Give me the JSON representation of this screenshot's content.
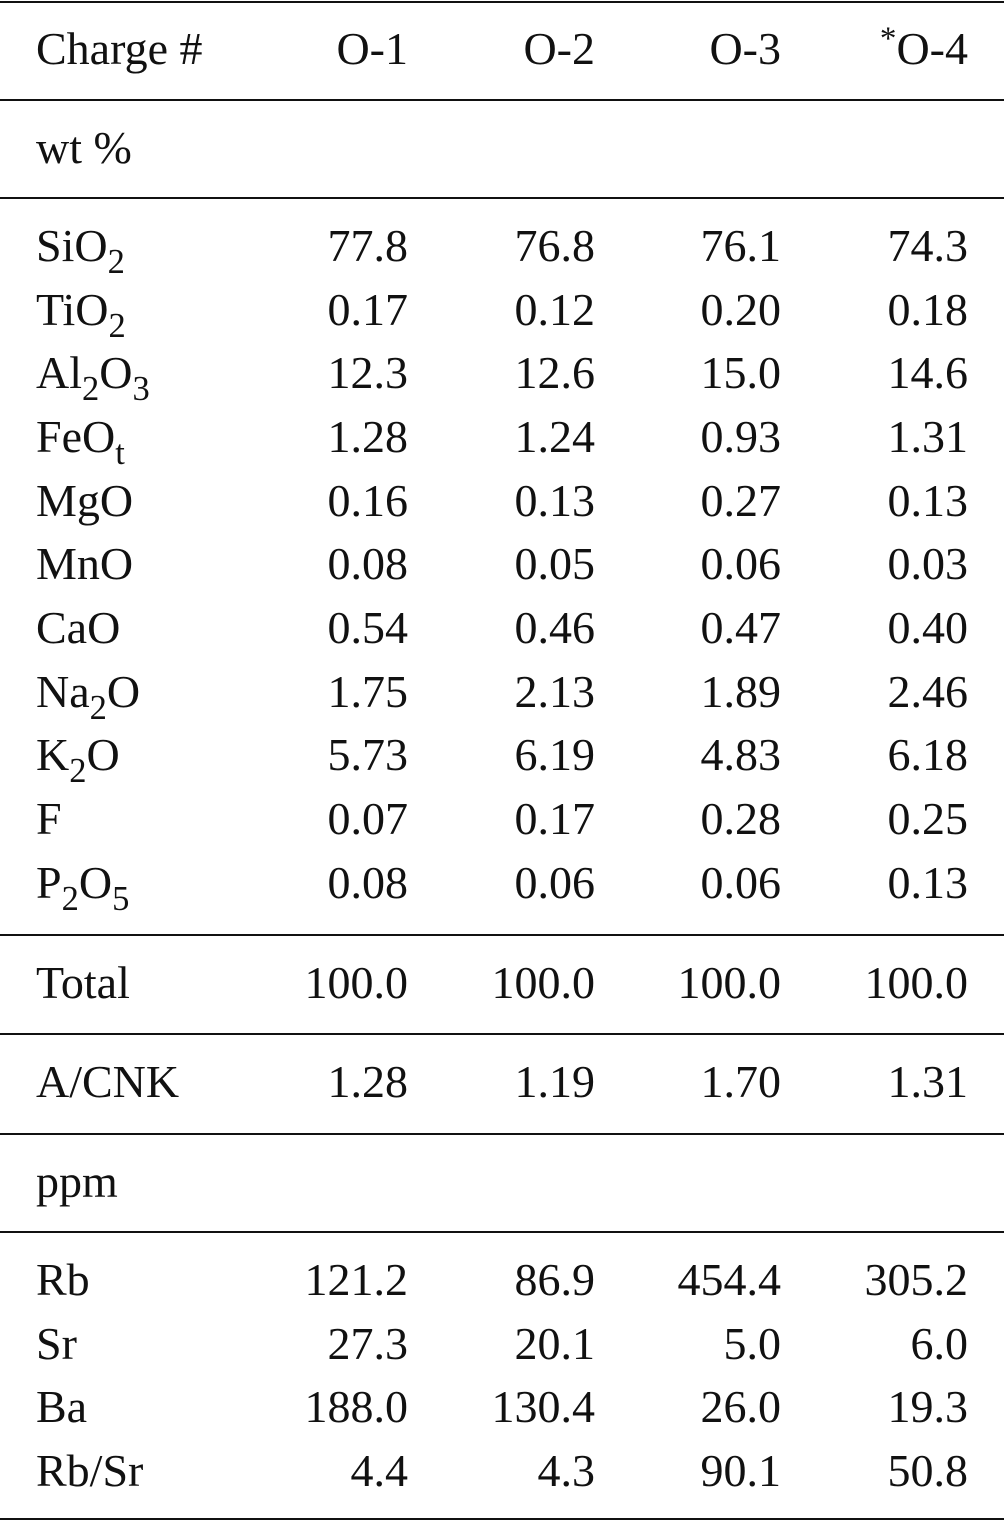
{
  "table": {
    "header": [
      [
        {
          "t": "Charge #"
        }
      ],
      [
        {
          "t": "O-1"
        }
      ],
      [
        {
          "t": "O-2"
        }
      ],
      [
        {
          "t": "O-3"
        }
      ],
      [
        {
          "sup": "*"
        },
        {
          "t": "O-4"
        }
      ]
    ],
    "sections": [
      {
        "title": "wt %",
        "rows": [
          {
            "label": [
              {
                "t": "SiO"
              },
              {
                "sub": "2"
              }
            ],
            "values": [
              "77.8",
              "76.8",
              "76.1",
              "74.3"
            ]
          },
          {
            "label": [
              {
                "t": "TiO"
              },
              {
                "sub": "2"
              }
            ],
            "values": [
              "0.17",
              "0.12",
              "0.20",
              "0.18"
            ]
          },
          {
            "label": [
              {
                "t": "Al"
              },
              {
                "sub": "2"
              },
              {
                "t": "O"
              },
              {
                "sub": "3"
              }
            ],
            "values": [
              "12.3",
              "12.6",
              "15.0",
              "14.6"
            ]
          },
          {
            "label": [
              {
                "t": "FeO"
              },
              {
                "sub": "t"
              }
            ],
            "values": [
              "1.28",
              "1.24",
              "0.93",
              "1.31"
            ]
          },
          {
            "label": [
              {
                "t": "MgO"
              }
            ],
            "values": [
              "0.16",
              "0.13",
              "0.27",
              "0.13"
            ]
          },
          {
            "label": [
              {
                "t": "MnO"
              }
            ],
            "values": [
              "0.08",
              "0.05",
              "0.06",
              "0.03"
            ]
          },
          {
            "label": [
              {
                "t": "CaO"
              }
            ],
            "values": [
              "0.54",
              "0.46",
              "0.47",
              "0.40"
            ]
          },
          {
            "label": [
              {
                "t": "Na"
              },
              {
                "sub": "2"
              },
              {
                "t": "O"
              }
            ],
            "values": [
              "1.75",
              "2.13",
              "1.89",
              "2.46"
            ]
          },
          {
            "label": [
              {
                "t": "K"
              },
              {
                "sub": "2"
              },
              {
                "t": "O"
              }
            ],
            "values": [
              "5.73",
              "6.19",
              "4.83",
              "6.18"
            ]
          },
          {
            "label": [
              {
                "t": "F"
              }
            ],
            "values": [
              "0.07",
              "0.17",
              "0.28",
              "0.25"
            ]
          },
          {
            "label": [
              {
                "t": "P"
              },
              {
                "sub": "2"
              },
              {
                "t": "O"
              },
              {
                "sub": "5"
              }
            ],
            "values": [
              "0.08",
              "0.06",
              "0.06",
              "0.13"
            ]
          }
        ]
      },
      {
        "rows": [
          {
            "label": [
              {
                "t": "Total"
              }
            ],
            "values": [
              "100.0",
              "100.0",
              "100.0",
              "100.0"
            ]
          }
        ]
      },
      {
        "rows": [
          {
            "label": [
              {
                "t": "A/CNK"
              }
            ],
            "values": [
              "1.28",
              "1.19",
              "1.70",
              "1.31"
            ]
          }
        ]
      },
      {
        "title": "ppm",
        "rows": [
          {
            "label": [
              {
                "t": "Rb"
              }
            ],
            "values": [
              "121.2",
              "86.9",
              "454.4",
              "305.2"
            ]
          },
          {
            "label": [
              {
                "t": "Sr"
              }
            ],
            "values": [
              "27.3",
              "20.1",
              "5.0",
              "6.0"
            ]
          },
          {
            "label": [
              {
                "t": "Ba"
              }
            ],
            "values": [
              "188.0",
              "130.4",
              "26.0",
              "19.3"
            ]
          },
          {
            "label": [
              {
                "t": "Rb/Sr"
              }
            ],
            "values": [
              "4.4",
              "4.3",
              "90.1",
              "50.8"
            ]
          }
        ]
      }
    ]
  }
}
